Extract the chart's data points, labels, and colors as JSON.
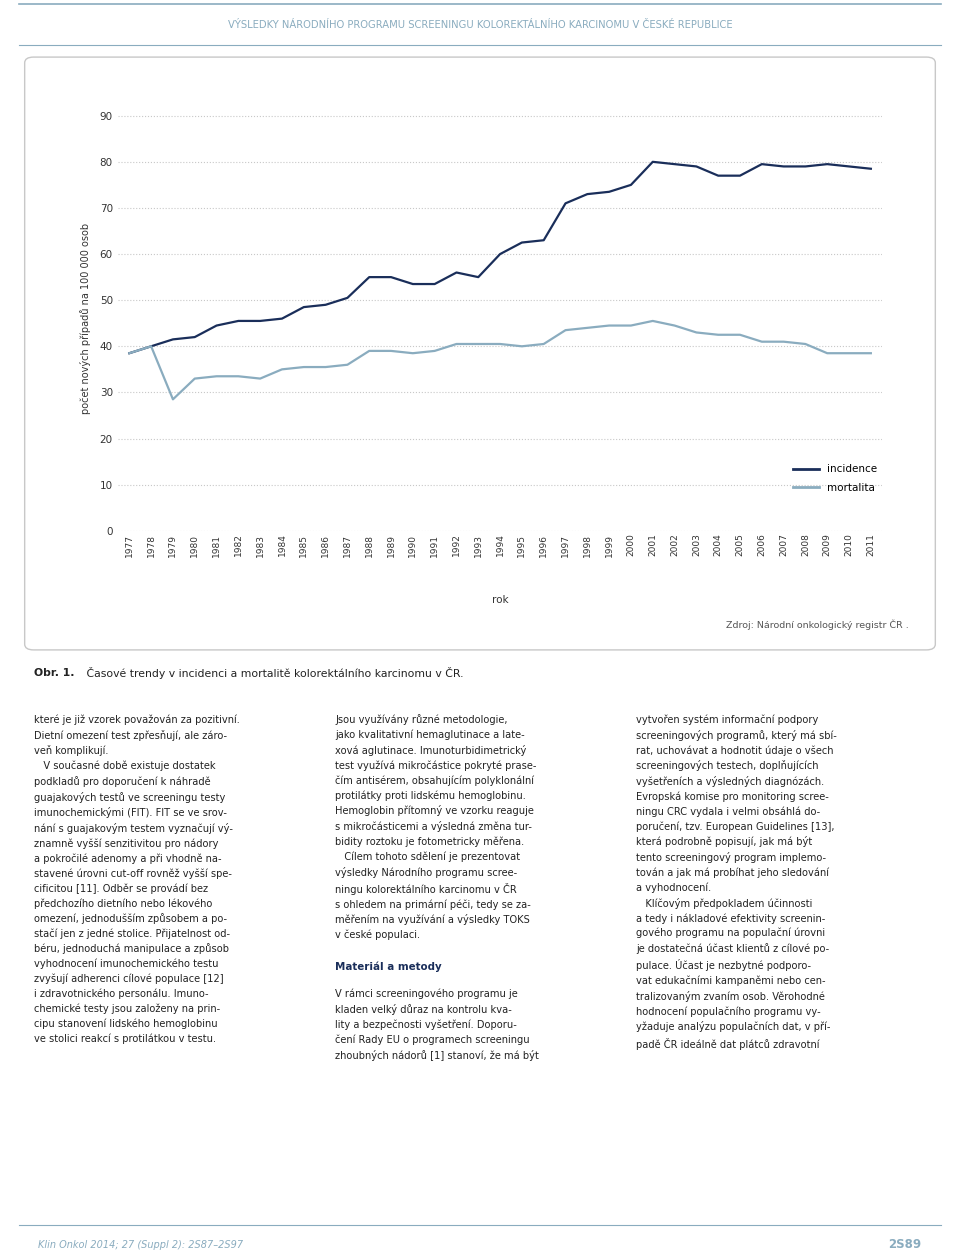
{
  "header_text": "VÝSLEDKY NÁRODNÍHO PROGRAMU SCREENINGU KOLOREKTÁLNÍHO KARCINOMU V ČESKÉ REPUBLICE",
  "header_color": "#8aacbf",
  "header_line_color": "#8aacbf",
  "years": [
    1977,
    1978,
    1979,
    1980,
    1981,
    1982,
    1983,
    1984,
    1985,
    1986,
    1987,
    1988,
    1989,
    1990,
    1991,
    1992,
    1993,
    1994,
    1995,
    1996,
    1997,
    1998,
    1999,
    2000,
    2001,
    2002,
    2003,
    2004,
    2005,
    2006,
    2007,
    2008,
    2009,
    2010,
    2011
  ],
  "incidence": [
    38.5,
    40.0,
    41.5,
    42.0,
    44.5,
    45.5,
    45.5,
    46.0,
    48.5,
    49.0,
    50.5,
    55.0,
    55.0,
    53.5,
    53.5,
    56.0,
    55.0,
    60.0,
    62.5,
    63.0,
    71.0,
    73.0,
    73.5,
    75.0,
    80.0,
    79.5,
    79.0,
    77.0,
    77.0,
    79.5,
    79.0,
    79.0,
    79.5,
    79.0,
    78.5
  ],
  "mortalita": [
    38.5,
    40.0,
    28.5,
    33.0,
    33.5,
    33.5,
    33.0,
    35.0,
    35.5,
    35.5,
    36.0,
    39.0,
    39.0,
    38.5,
    39.0,
    40.5,
    40.5,
    40.5,
    40.0,
    40.5,
    43.5,
    44.0,
    44.5,
    44.5,
    45.5,
    44.5,
    43.0,
    42.5,
    42.5,
    41.0,
    41.0,
    40.5,
    38.5,
    38.5,
    38.5
  ],
  "incidence_color": "#1a2e5a",
  "mortalita_color": "#8aacbf",
  "ylabel": "počet nových případů na 100 000 osob",
  "xlabel": "rok",
  "yticks": [
    0,
    10,
    20,
    30,
    40,
    50,
    60,
    70,
    80,
    90
  ],
  "ylim": [
    0,
    92
  ],
  "grid_color": "#c8c8c8",
  "legend_incidence": "incidence",
  "legend_mortalita": "mortalita",
  "source_text": "Zdroj: Národní onkologický registr ČR .",
  "fig_caption_bold": "Obr. 1.",
  "fig_caption_rest": " Časové trendy v incidenci a mortalitě kolorektálního karcinomu v ČR.",
  "body_col1": "které je již vzorek považován za pozitivní.\nDietní omezení test zpřesňují, ale záro-\nveň komplikují.\n   V současné době existuje dostatek\npodkladů pro doporučení k náhradě\nguajakových testů ve screeningu testy\nimunochemickými (FIT). FIT se ve srov-\nnání s guajakovým testem vyznačují vý-\nznamně vyšší senzitivitou pro nádory\na pokročilé adenomy a při vhodně na-\nstavené úrovni cut-off rovněž vyšší spe-\ncificitou [11]. Odběr se provádí bez\npředchozího dietního nebo lékového\nomezení, jednodušším způsobem a po-\nstačí jen z jedné stolice. Přijatelnost od-\nbéru, jednoduchá manipulace a způsob\nvyhodnocení imunochemického testu\nzvyšují adherenci cílové populace [12]\ni zdravotnického personálu. Imuno-\nchemické testy jsou založeny na prin-\ncipu stanovení lidského hemoglobinu\nve stolici reakcí s protilátkou v testu.",
  "body_col2_part1": "Jsou využívány různé metodologie,\njako kvalitativní hemaglutinace a late-\nxová aglutinace. Imunoturbidimetrický\ntest využívá mikročástice pokryté prase-\nčím antisérem, obsahujícím polyklonální\nprotilátky proti lidskému hemoglobinu.\nHemoglobin přítomný ve vzorku reaguje\ns mikročásticemi a výsledná změna tur-\nbidity roztoku je fotometricky měřena.\n   Cílem tohoto sdělení je prezentovat\nvýsledky Národního programu scree-\nningu kolorektálního karcinomu v ČR\ns ohledem na primární péči, tedy se za-\nměřením na využívání a výsledky TOKS\nv české populaci.",
  "body_col2_heading": "Materiál a metody",
  "body_col2_part2": "V rámci screeningového programu je\nkladen velký důraz na kontrolu kva-\nlity a bezpečnosti vyšetření. Doporu-\nčení Rady EU o programech screeningu\nzhoubných nádorů [1] stanoví, že má být",
  "body_col3": "vytvořen systém informační podpory\nscreeningových programů, který má sbí-\nrat, uchovávat a hodnotit údaje o všech\nscreeningových testech, doplňujících\nvyšetřeních a výsledných diagnózách.\nEvropská komise pro monitoring scree-\nningu CRC vydala i velmi obsáhlá do-\nporučení, tzv. European Guidelines [13],\nkterá podrobně popisují, jak má být\ntento screeningový program implemo-\ntován a jak má probíhat jeho sledování\na vyhodnocení.\n   Klíčovým předpokladem účinnosti\na tedy i nákladové efektivity screenin-\ngového programu na populační úrovni\nje dostatečná účast klientů z cílové po-\npulace. Účast je nezbytné podporo-\nvat edukačními kampaněmi nebo cen-\ntralizovaným zvaním osob. Věrohodné\nhodnocení populačního programu vy-\nyžaduje analýzu populačních dat, v pří-\npadě ČR ideálně dat plátců zdravotní",
  "footer_journal": "Klin Onkol 2014; 27 (Suppl 2): 2S87–2S97",
  "footer_page": "2S89",
  "footer_color": "#8aacbf"
}
